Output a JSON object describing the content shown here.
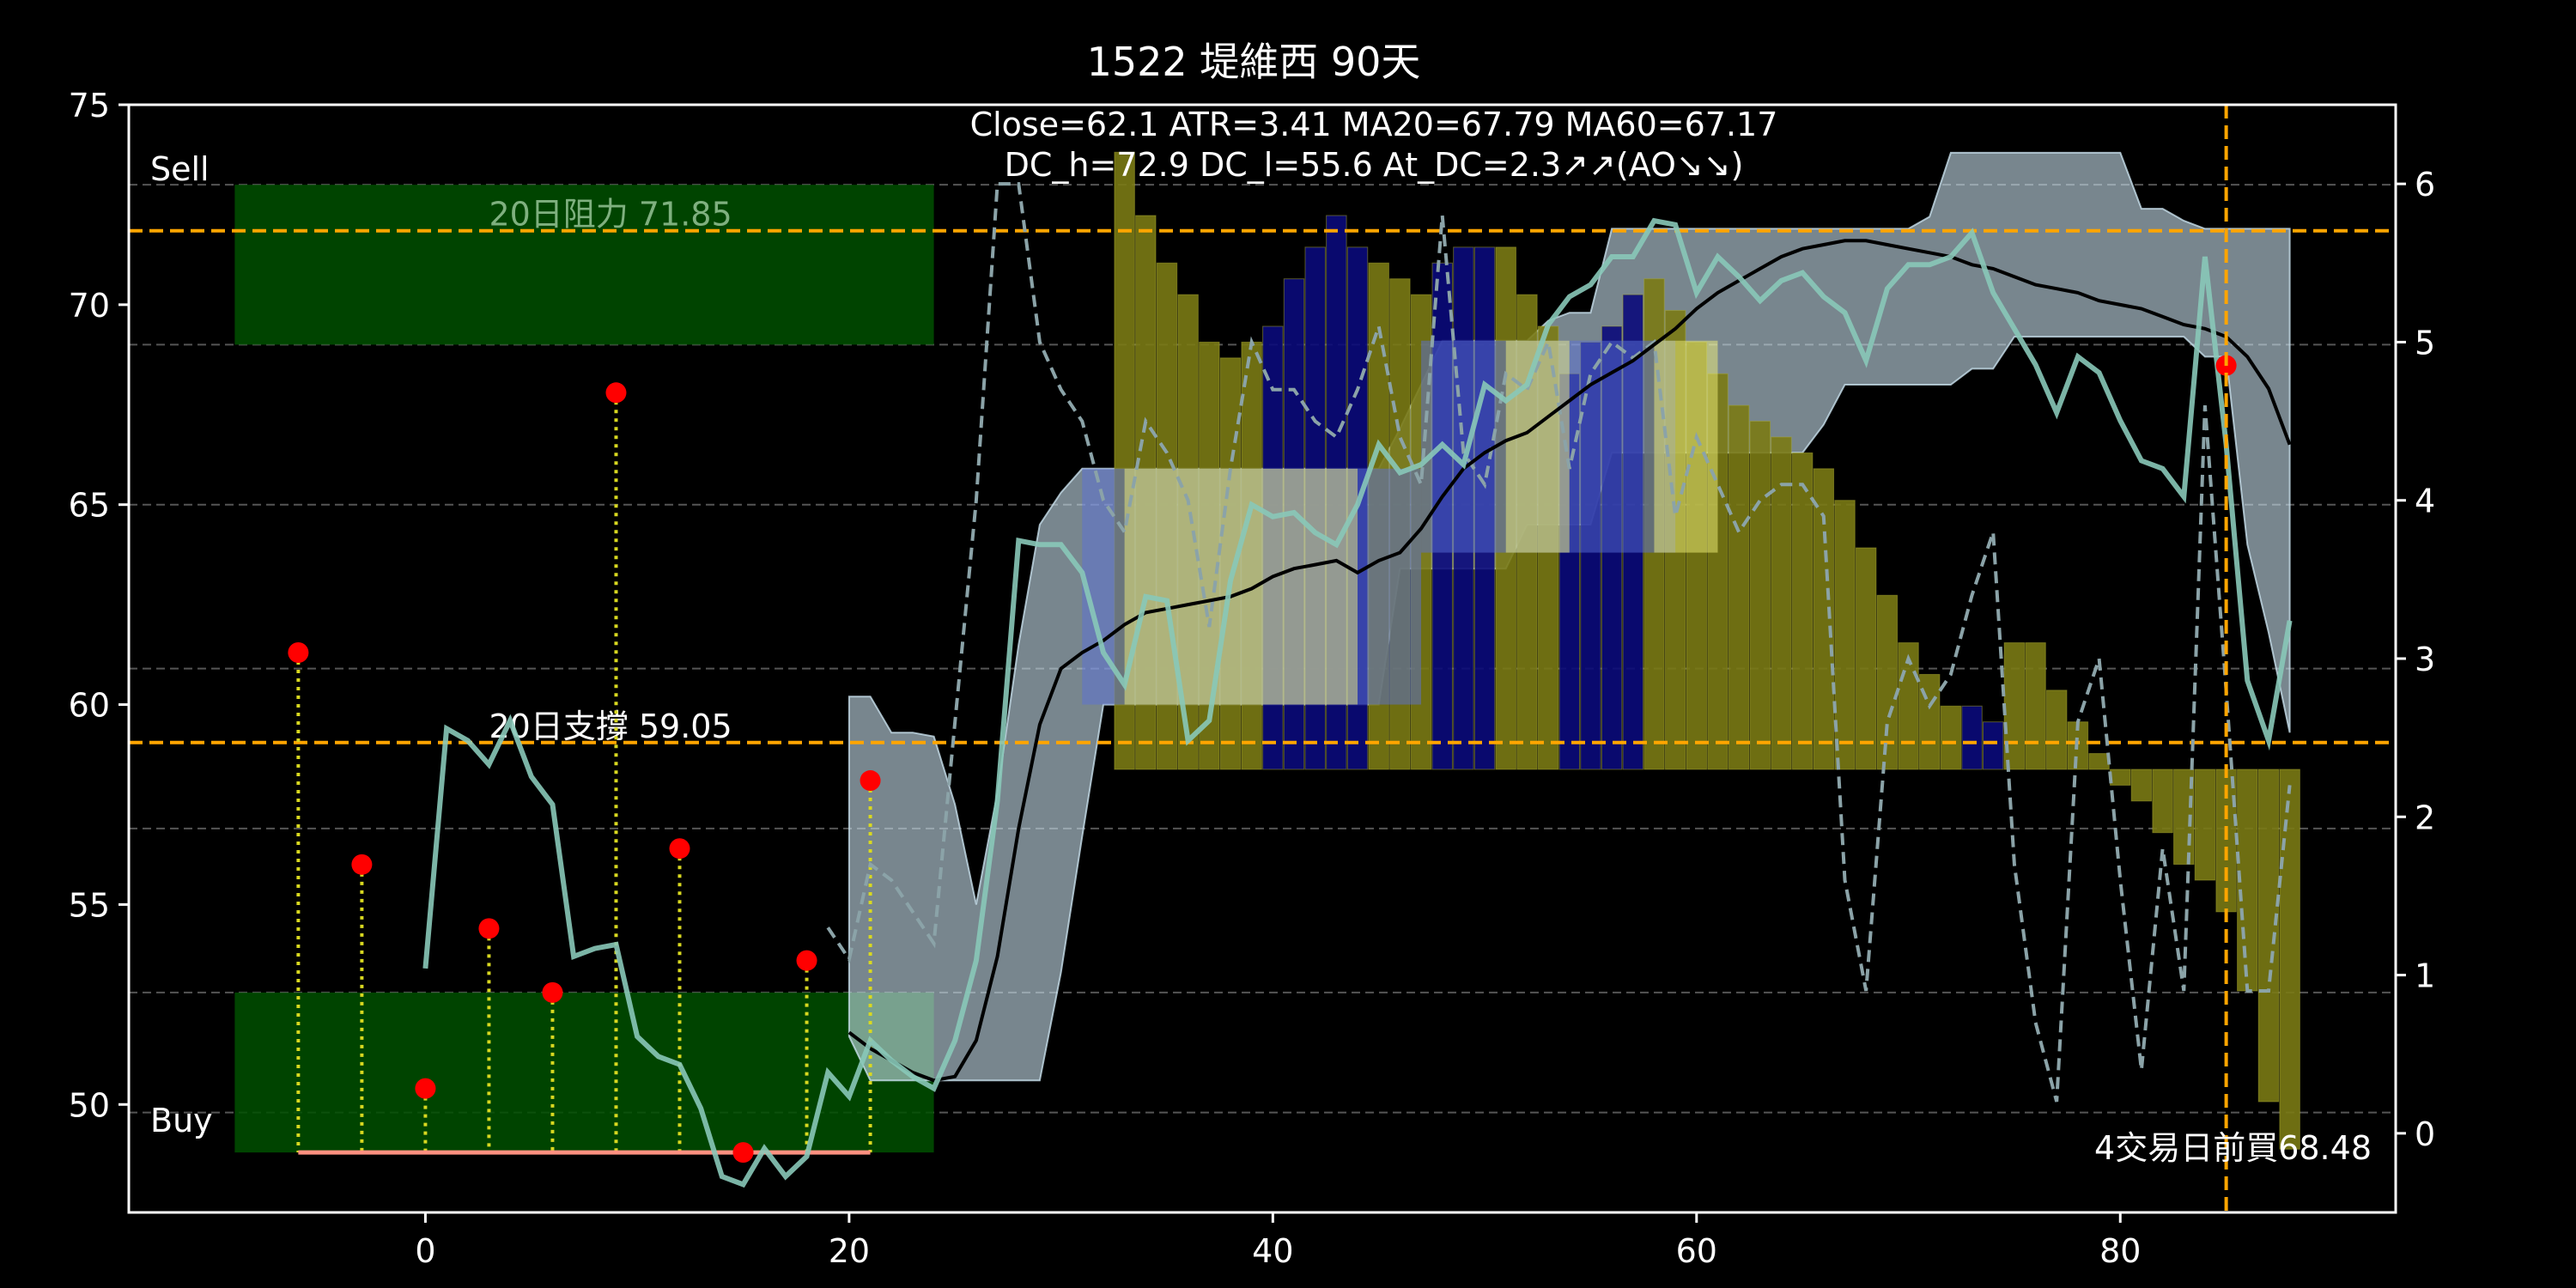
{
  "colors": {
    "background": "#000000",
    "frame": "#ffffff",
    "text": "#ffffff",
    "grid": "#555555",
    "zone": "#005000",
    "zone_edge": "#0c6a0c",
    "level_line": "#ffa500",
    "event_line": "#ffa500",
    "price_line": "#88c8b8",
    "ma_line": "#000000",
    "ao_line": "#8ba3a8",
    "band": "#c8e0ec",
    "box_blue": "#5a6fd8",
    "box_yellow": "#f2f27a",
    "ao_up": "#7a7a14",
    "ao_down": "#0a0a7a",
    "point": "#ff0000",
    "stem": "#d8d820",
    "baseline": "#ff9080"
  },
  "chart_data": {
    "type": "line",
    "title": "1522 堤維西 90天",
    "info_lines": [
      "Close=62.1 ATR=3.41 MA20=67.79 MA60=67.17",
      "DC_h=72.9 DC_l=55.6 At_DC=2.3↗↗(AO↘↘)"
    ],
    "xlim": [
      -14,
      93
    ],
    "ylim": [
      47.3,
      75
    ],
    "y2lim": [
      -0.5,
      6.5
    ],
    "x_ticks": [
      0,
      20,
      40,
      60,
      80
    ],
    "y_ticks": [
      50,
      55,
      60,
      65,
      70,
      75
    ],
    "y2_ticks": [
      0,
      1,
      2,
      3,
      4,
      5,
      6
    ],
    "grid_y": [
      49.8,
      52.8,
      56.9,
      60.9,
      65.0,
      69.0,
      73.0
    ],
    "zones": [
      {
        "name": "Sell",
        "x": [
          -9,
          24
        ],
        "y": [
          69,
          73
        ]
      },
      {
        "name": "Buy",
        "x": [
          -9,
          24
        ],
        "y": [
          48.8,
          52.8
        ]
      }
    ],
    "levels": [
      {
        "label": "20日阻力 71.85",
        "value": 71.85,
        "label_x": 3
      },
      {
        "label": "20日支撐 59.05",
        "value": 59.05,
        "label_x": 3
      }
    ],
    "event": {
      "x": 85,
      "label": "4交易日前買68.48",
      "y": 68.48
    },
    "price": {
      "x": [
        0,
        1,
        2,
        3,
        4,
        5,
        6,
        7,
        8,
        9,
        10,
        11,
        12,
        13,
        14,
        15,
        16,
        17,
        18,
        19,
        20,
        21,
        22,
        23,
        24,
        25,
        26,
        27,
        28,
        29,
        30,
        31,
        32,
        33,
        34,
        35,
        36,
        37,
        38,
        39,
        40,
        41,
        42,
        43,
        44,
        45,
        46,
        47,
        48,
        49,
        50,
        51,
        52,
        53,
        54,
        55,
        56,
        57,
        58,
        59,
        60,
        61,
        62,
        63,
        64,
        65,
        66,
        67,
        68,
        69,
        70,
        71,
        72,
        73,
        74,
        75,
        76,
        77,
        78,
        79,
        80,
        81,
        82,
        83,
        84,
        85,
        86,
        87,
        88
      ],
      "y": [
        53.4,
        59.4,
        59.1,
        58.5,
        59.6,
        58.2,
        57.5,
        53.7,
        53.9,
        54.0,
        51.7,
        51.2,
        51.0,
        49.9,
        48.2,
        48.0,
        48.9,
        48.2,
        48.7,
        50.8,
        50.2,
        51.6,
        51.1,
        50.7,
        50.4,
        51.6,
        53.6,
        57.6,
        64.1,
        64.0,
        64.0,
        63.3,
        61.3,
        60.5,
        62.7,
        62.6,
        59.1,
        59.6,
        63.1,
        65.0,
        64.7,
        64.8,
        64.3,
        64.0,
        65.0,
        66.5,
        65.8,
        66.0,
        66.5,
        66.0,
        68.0,
        67.6,
        68.0,
        69.5,
        70.2,
        70.5,
        71.2,
        71.2,
        72.1,
        72.0,
        70.3,
        71.2,
        70.7,
        70.1,
        70.6,
        70.8,
        70.2,
        69.8,
        68.6,
        70.4,
        71.0,
        71.0,
        71.2,
        71.8,
        70.3,
        69.4,
        68.5,
        67.3,
        68.7,
        68.3,
        67.1,
        66.1,
        65.9,
        65.2,
        71.2,
        66.5,
        60.6,
        59.1,
        62.1
      ]
    },
    "ma": {
      "x": [
        20,
        21,
        22,
        23,
        24,
        25,
        26,
        27,
        28,
        29,
        30,
        31,
        32,
        33,
        34,
        35,
        36,
        37,
        38,
        39,
        40,
        41,
        42,
        43,
        44,
        45,
        46,
        47,
        48,
        49,
        50,
        51,
        52,
        53,
        54,
        55,
        56,
        57,
        58,
        59,
        60,
        61,
        62,
        63,
        64,
        65,
        66,
        67,
        68,
        69,
        70,
        71,
        72,
        73,
        74,
        75,
        76,
        77,
        78,
        79,
        80,
        81,
        82,
        83,
        84,
        85,
        86,
        87,
        88
      ],
      "y": [
        51.8,
        51.4,
        51.1,
        50.8,
        50.6,
        50.7,
        51.6,
        53.7,
        56.9,
        59.5,
        60.9,
        61.3,
        61.6,
        62.0,
        62.3,
        62.4,
        62.5,
        62.6,
        62.7,
        62.9,
        63.2,
        63.4,
        63.5,
        63.6,
        63.3,
        63.6,
        63.8,
        64.4,
        65.2,
        65.9,
        66.3,
        66.6,
        66.8,
        67.2,
        67.6,
        68.0,
        68.3,
        68.6,
        69.0,
        69.4,
        69.9,
        70.3,
        70.6,
        70.9,
        71.2,
        71.4,
        71.5,
        71.6,
        71.6,
        71.5,
        71.4,
        71.3,
        71.2,
        71.0,
        70.9,
        70.7,
        70.5,
        70.4,
        70.3,
        70.1,
        70.0,
        69.9,
        69.7,
        69.5,
        69.4,
        69.2,
        68.7,
        67.9,
        66.5
      ]
    },
    "ao": {
      "x": [
        19,
        20,
        21,
        22,
        23,
        24,
        25,
        26,
        27,
        28,
        29,
        30,
        31,
        32,
        33,
        34,
        35,
        36,
        37,
        38,
        39,
        40,
        41,
        42,
        43,
        44,
        45,
        46,
        47,
        48,
        49,
        50,
        51,
        52,
        53,
        54,
        55,
        56,
        57,
        58,
        59,
        60,
        61,
        62,
        63,
        64,
        65,
        66,
        67,
        68,
        69,
        70,
        71,
        72,
        73,
        74,
        75,
        76,
        77,
        78,
        79,
        80,
        81,
        82,
        83,
        84,
        85,
        86,
        87,
        88
      ],
      "y": [
        1.3,
        1.1,
        1.7,
        1.6,
        1.4,
        1.2,
        2.6,
        4.0,
        6.0,
        6.0,
        5.0,
        4.7,
        4.5,
        4.0,
        3.8,
        4.5,
        4.3,
        4.0,
        3.2,
        4.2,
        5.0,
        4.7,
        4.7,
        4.5,
        4.4,
        4.7,
        5.1,
        4.4,
        4.1,
        5.8,
        4.3,
        4.1,
        4.8,
        4.7,
        5.0,
        4.2,
        4.8,
        5.0,
        4.9,
        5.0,
        3.9,
        4.4,
        4.1,
        3.8,
        4.0,
        4.1,
        4.1,
        3.9,
        1.6,
        0.9,
        2.6,
        3.0,
        2.7,
        2.9,
        3.4,
        3.8,
        1.7,
        0.7,
        0.2,
        2.6,
        3.0,
        1.6,
        0.4,
        1.8,
        0.9,
        4.6,
        2.8,
        0.9,
        0.9,
        2.2
      ]
    },
    "band": {
      "x": [
        20,
        21,
        22,
        23,
        24,
        25,
        26,
        27,
        28,
        29,
        30,
        31,
        32,
        33,
        34,
        35,
        36,
        37,
        38,
        39,
        40,
        41,
        42,
        43,
        44,
        45,
        46,
        47,
        48,
        49,
        50,
        51,
        52,
        53,
        54,
        55,
        56,
        57,
        58,
        59,
        60,
        61,
        62,
        63,
        64,
        65,
        66,
        67,
        68,
        69,
        70,
        71,
        72,
        73,
        74,
        75,
        76,
        77,
        78,
        79,
        80,
        81,
        82,
        83,
        84,
        85,
        86,
        87,
        88
      ],
      "upper": [
        60.2,
        60.2,
        59.3,
        59.3,
        59.2,
        57.5,
        55.0,
        57.8,
        61.5,
        64.5,
        65.3,
        65.9,
        65.9,
        65.9,
        65.9,
        65.9,
        65.9,
        65.9,
        65.9,
        65.9,
        65.9,
        65.9,
        65.9,
        65.9,
        65.9,
        65.9,
        66.9,
        68.0,
        69.1,
        69.1,
        69.1,
        69.1,
        69.1,
        69.6,
        69.8,
        69.8,
        71.9,
        71.9,
        71.9,
        71.9,
        71.9,
        71.9,
        71.9,
        71.9,
        71.9,
        71.9,
        71.9,
        71.9,
        71.9,
        71.9,
        71.9,
        72.2,
        73.8,
        73.8,
        73.8,
        73.8,
        73.8,
        73.8,
        73.8,
        73.8,
        73.8,
        72.4,
        72.4,
        72.1,
        71.9,
        71.9,
        71.9,
        71.9,
        71.9
      ],
      "lower": [
        51.7,
        50.6,
        50.6,
        50.6,
        50.6,
        50.6,
        50.6,
        50.6,
        50.6,
        50.6,
        53.3,
        56.7,
        60.0,
        60.0,
        60.0,
        60.0,
        60.0,
        60.0,
        60.0,
        60.0,
        60.0,
        60.0,
        60.0,
        60.0,
        60.0,
        60.0,
        63.4,
        63.4,
        63.4,
        63.4,
        63.4,
        63.4,
        64.5,
        64.5,
        64.5,
        64.5,
        66.3,
        66.3,
        66.3,
        66.3,
        66.3,
        66.3,
        66.3,
        66.3,
        66.3,
        66.3,
        67.0,
        68.0,
        68.0,
        68.0,
        68.0,
        68.0,
        68.0,
        68.4,
        68.4,
        69.2,
        69.2,
        69.2,
        69.2,
        69.2,
        69.2,
        69.2,
        69.2,
        69.2,
        68.7,
        68.7,
        64.0,
        61.8,
        59.3
      ]
    },
    "boxes": [
      {
        "color": "blue",
        "x": [
          31,
          47
        ],
        "y": [
          60.0,
          65.9
        ]
      },
      {
        "color": "yellow",
        "x": [
          33,
          44
        ],
        "y": [
          60.0,
          65.9
        ]
      },
      {
        "color": "blue",
        "x": [
          47,
          59
        ],
        "y": [
          63.8,
          69.1
        ]
      },
      {
        "color": "yellow",
        "x": [
          51,
          54
        ],
        "y": [
          63.8,
          69.1
        ]
      },
      {
        "color": "yellow",
        "x": [
          58,
          61
        ],
        "y": [
          63.8,
          69.1
        ]
      }
    ],
    "ao_bars": {
      "baseline": 2.3,
      "x": [
        33,
        34,
        35,
        36,
        37,
        38,
        39,
        40,
        41,
        42,
        43,
        44,
        45,
        46,
        47,
        48,
        49,
        50,
        51,
        52,
        53,
        54,
        55,
        56,
        57,
        58,
        59,
        60,
        61,
        62,
        63,
        64,
        65,
        66,
        67,
        68,
        69,
        70,
        71,
        72,
        73,
        74,
        75,
        76,
        77,
        78,
        79,
        80,
        81,
        82,
        83,
        84,
        85,
        86,
        87,
        88
      ],
      "top": [
        6.2,
        5.8,
        5.5,
        5.3,
        5.0,
        4.9,
        5.0,
        5.1,
        5.4,
        5.6,
        5.8,
        5.6,
        5.5,
        5.4,
        5.3,
        5.5,
        5.6,
        5.6,
        5.6,
        5.3,
        5.1,
        4.8,
        5.0,
        5.1,
        5.3,
        5.4,
        5.2,
        5.0,
        4.8,
        4.6,
        4.5,
        4.4,
        4.3,
        4.2,
        4.0,
        3.7,
        3.4,
        3.1,
        2.9,
        2.7,
        2.7,
        2.6,
        3.1,
        3.1,
        2.8,
        2.6,
        2.4,
        2.2,
        2.1,
        1.9,
        1.7,
        1.6,
        1.4,
        0.9,
        0.2,
        -0.1
      ],
      "bear": [
        40,
        41,
        42,
        43,
        44,
        48,
        49,
        50,
        54,
        55,
        56,
        57,
        73,
        74
      ]
    },
    "signals": [
      {
        "x": -6,
        "y": 61.3
      },
      {
        "x": -3,
        "y": 56.0
      },
      {
        "x": 0,
        "y": 50.4
      },
      {
        "x": 3,
        "y": 54.4
      },
      {
        "x": 6,
        "y": 52.8
      },
      {
        "x": 9,
        "y": 67.8
      },
      {
        "x": 12,
        "y": 56.4
      },
      {
        "x": 15,
        "y": 48.8
      },
      {
        "x": 18,
        "y": 53.6
      },
      {
        "x": 21,
        "y": 58.1
      },
      {
        "x": 85,
        "y": 68.48
      }
    ],
    "signal_baseline": {
      "x": [
        -6,
        21
      ],
      "y": 48.8
    }
  }
}
